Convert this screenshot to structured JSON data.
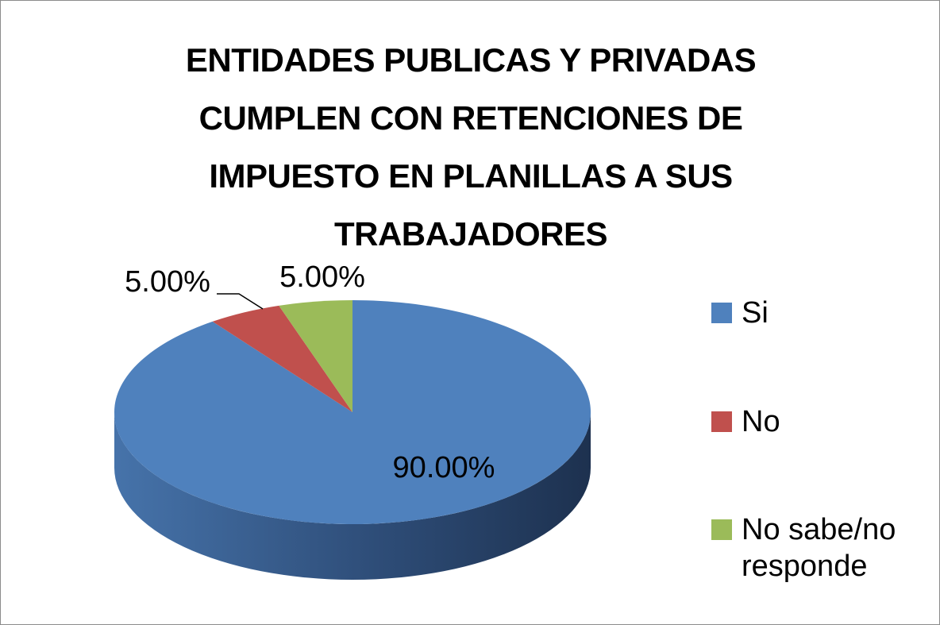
{
  "chart_data": {
    "type": "pie",
    "title": "ENTIDADES PUBLICAS Y PRIVADAS CUMPLEN CON RETENCIONES DE IMPUESTO EN PLANILLAS A SUS TRABAJADORES",
    "categories": [
      "Si",
      "No",
      "No sabe/no responde"
    ],
    "values": [
      90,
      5,
      5
    ],
    "value_labels": [
      "90.00%",
      "5.00%",
      "5.00%"
    ],
    "colors": [
      "#4f81bd",
      "#c0504d",
      "#9bbb59"
    ],
    "legend": "right"
  }
}
